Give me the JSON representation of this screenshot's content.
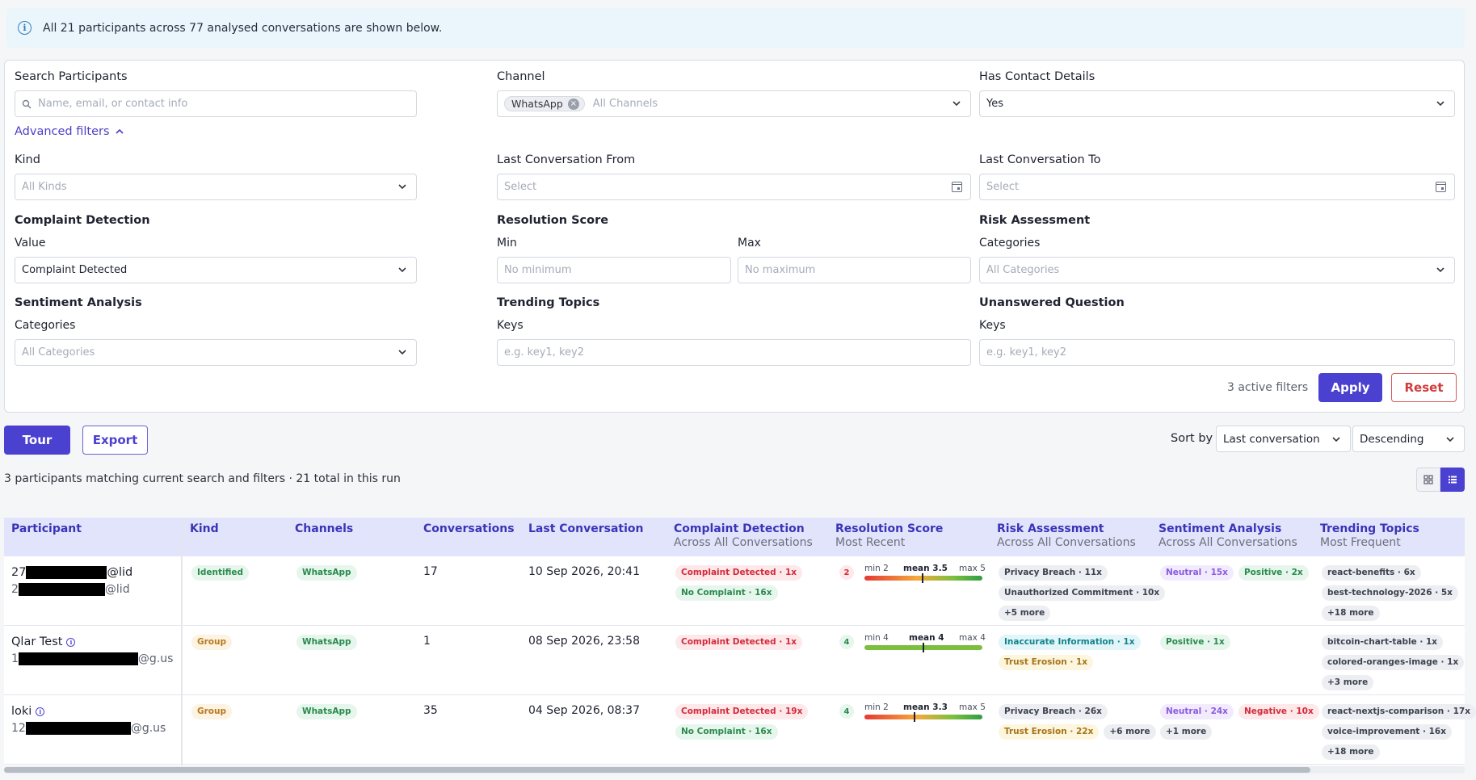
{
  "banner": {
    "text": "All 21 participants across 77 analysed conversations are shown below."
  },
  "filters": {
    "search": {
      "label": "Search Participants",
      "placeholder": "Name, email, or contact info"
    },
    "channel": {
      "label": "Channel",
      "chip": "WhatsApp",
      "placeholder": "All Channels"
    },
    "contact": {
      "label": "Has Contact Details",
      "value": "Yes"
    },
    "advanced_label": "Advanced filters",
    "kind": {
      "label": "Kind",
      "placeholder": "All Kinds"
    },
    "from": {
      "label": "Last Conversation From",
      "placeholder": "Select"
    },
    "to": {
      "label": "Last Conversation To",
      "placeholder": "Select"
    },
    "complaint": {
      "label": "Complaint Detection",
      "sublabel": "Value",
      "value": "Complaint Detected"
    },
    "resolution": {
      "label": "Resolution Score",
      "min_label": "Min",
      "min_placeholder": "No minimum",
      "max_label": "Max",
      "max_placeholder": "No maximum"
    },
    "risk": {
      "label": "Risk Assessment",
      "sublabel": "Categories",
      "placeholder": "All Categories"
    },
    "sentiment": {
      "label": "Sentiment Analysis",
      "sublabel": "Categories",
      "placeholder": "All Categories"
    },
    "trending": {
      "label": "Trending Topics",
      "sublabel": "Keys",
      "placeholder": "e.g. key1, key2"
    },
    "unanswered": {
      "label": "Unanswered Question",
      "sublabel": "Keys",
      "placeholder": "e.g. key1, key2"
    },
    "active_count": "3 active filters",
    "apply_label": "Apply",
    "reset_label": "Reset"
  },
  "toolbar": {
    "tour_label": "Tour",
    "export_label": "Export",
    "sort_label": "Sort by",
    "sort_field": "Last conversation",
    "sort_order": "Descending",
    "matching_text": "3 participants matching current search and filters · 21 total in this run"
  },
  "table": {
    "headers": {
      "participant": "Participant",
      "kind": "Kind",
      "channels": "Channels",
      "conversations": "Conversations",
      "last": "Last Conversation",
      "complaint": "Complaint Detection",
      "complaint_sub": "Across All Conversations",
      "resolution": "Resolution Score",
      "resolution_sub": "Most Recent",
      "risk": "Risk Assessment",
      "risk_sub": "Across All Conversations",
      "sentiment": "Sentiment Analysis",
      "sentiment_sub": "Across All Conversations",
      "trending": "Trending Topics",
      "trending_sub": "Most Frequent"
    },
    "rows": [
      {
        "name_prefix": "27",
        "name_suffix": "@lid",
        "id_prefix": "2",
        "id_suffix": "@lid",
        "kind": "Identified",
        "channel": "WhatsApp",
        "conversations": "17",
        "last": "10 Sep 2026, 20:41",
        "complaint": [
          "Complaint Detected · 1x",
          "No Complaint · 16x"
        ],
        "score": {
          "value": "2",
          "min": "min 2",
          "mean": "mean 3.5",
          "max": "max 5",
          "mean_value": 3.5,
          "min_value": 2,
          "max_value": 5
        },
        "risk": [
          "Privacy Breach · 11x",
          "Unauthorized Commitment · 10x",
          "+5 more"
        ],
        "sentiment": [
          "Neutral · 15x",
          "Positive · 2x"
        ],
        "topics": [
          "react-benefits · 6x",
          "best-technology-2026 · 5x",
          "+18 more"
        ]
      },
      {
        "name": "Qlar Test",
        "id_prefix": "1",
        "id_suffix": "@g.us",
        "kind": "Group",
        "channel": "WhatsApp",
        "conversations": "1",
        "last": "08 Sep 2026, 23:58",
        "complaint": [
          "Complaint Detected · 1x"
        ],
        "score": {
          "value": "4",
          "min": "min 4",
          "mean": "mean 4",
          "max": "max 4",
          "mean_value": 4,
          "min_value": 4,
          "max_value": 4
        },
        "risk": [
          "Inaccurate Information · 1x",
          "Trust Erosion · 1x"
        ],
        "sentiment": [
          "Positive · 1x"
        ],
        "topics": [
          "bitcoin-chart-table · 1x",
          "colored-oranges-image · 1x",
          "+3 more"
        ]
      },
      {
        "name": "loki",
        "id_prefix": "12",
        "id_suffix": "@g.us",
        "kind": "Group",
        "channel": "WhatsApp",
        "conversations": "35",
        "last": "04 Sep 2026, 08:37",
        "complaint": [
          "Complaint Detected · 19x",
          "No Complaint · 16x"
        ],
        "score": {
          "value": "4",
          "min": "min 2",
          "mean": "mean 3.3",
          "max": "max 5",
          "mean_value": 3.3,
          "min_value": 2,
          "max_value": 5
        },
        "risk": [
          "Privacy Breach · 26x",
          "Trust Erosion · 22x",
          "+6 more"
        ],
        "sentiment": [
          "Neutral · 24x",
          "Negative · 10x",
          "+1 more"
        ],
        "topics": [
          "react-nextjs-comparison · 17x",
          "voice-improvement · 16x",
          "+18 more"
        ]
      }
    ]
  }
}
